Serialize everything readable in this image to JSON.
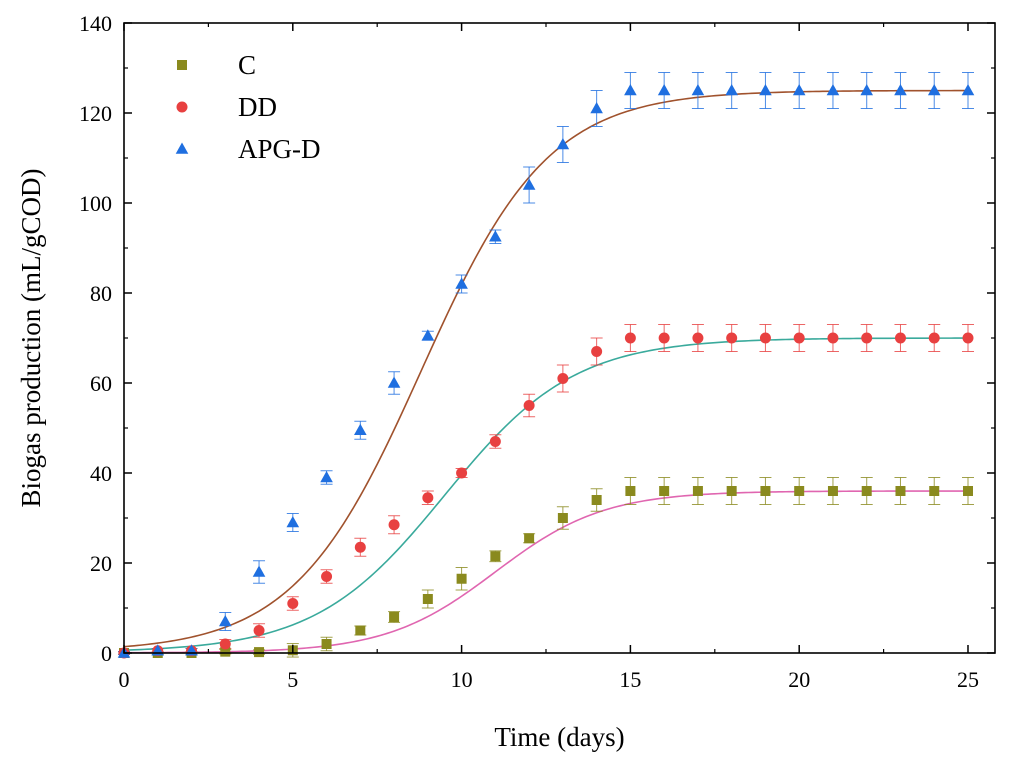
{
  "chart_data": {
    "type": "scatter",
    "title": "",
    "xlabel": "Time (days)",
    "ylabel": "Biogas production (mL/gCOD)",
    "xlim": [
      0,
      25.8
    ],
    "ylim": [
      0,
      140
    ],
    "xticks": [
      0,
      5,
      10,
      15,
      20,
      25
    ],
    "yticks": [
      0,
      20,
      40,
      60,
      80,
      100,
      120,
      140
    ],
    "legend_position": "top-left",
    "grid": false,
    "series": [
      {
        "name": "C",
        "marker": "square",
        "color": "#8a8a1e",
        "fit_color": "#e066b0",
        "x": [
          0,
          1,
          2,
          3,
          4,
          5,
          6,
          7,
          8,
          9,
          10,
          11,
          12,
          13,
          14,
          15,
          16,
          17,
          18,
          19,
          20,
          21,
          22,
          23,
          24,
          25
        ],
        "values": [
          0,
          0,
          0,
          0.3,
          0.2,
          0.6,
          2,
          5,
          8,
          12,
          16.5,
          21.5,
          25.5,
          30,
          34,
          36,
          36,
          36,
          36,
          36,
          36,
          36,
          36,
          36,
          36,
          36
        ],
        "errors": [
          0.3,
          0.3,
          0.3,
          0.5,
          0.5,
          1.5,
          1.5,
          1,
          1.2,
          2,
          2.5,
          1.2,
          1,
          2.5,
          2.5,
          3,
          3,
          3,
          3,
          3,
          3,
          3,
          3,
          3,
          3,
          3
        ],
        "fit": {
          "A": 36,
          "k": 0.62,
          "t0": 11,
          "offset": 0.03
        }
      },
      {
        "name": "DD",
        "marker": "circle",
        "color": "#e84040",
        "fit_color": "#3aaa9c",
        "x": [
          0,
          1,
          2,
          3,
          4,
          5,
          6,
          7,
          8,
          9,
          10,
          11,
          12,
          13,
          14,
          15,
          16,
          17,
          18,
          19,
          20,
          21,
          22,
          23,
          24,
          25
        ],
        "values": [
          0,
          0.5,
          0.5,
          2,
          5,
          11,
          17,
          23.5,
          28.5,
          34.5,
          40,
          47,
          55,
          61,
          67,
          70,
          70,
          70,
          70,
          70,
          70,
          70,
          70,
          70,
          70,
          70
        ],
        "errors": [
          0.3,
          0.5,
          0.5,
          1,
          1.5,
          1.5,
          1.5,
          2,
          2,
          1.5,
          1,
          1.5,
          2.5,
          3,
          3,
          3,
          3,
          3,
          3,
          3,
          3,
          3,
          3,
          3,
          3,
          3
        ],
        "fit": {
          "A": 70,
          "k": 0.52,
          "t0": 9.5,
          "offset": 0.13
        }
      },
      {
        "name": "APG-D",
        "marker": "triangle",
        "color": "#1f6fe0",
        "fit_color": "#a0522d",
        "x": [
          0,
          1,
          2,
          3,
          4,
          5,
          6,
          7,
          8,
          9,
          10,
          11,
          12,
          13,
          14,
          15,
          16,
          17,
          18,
          19,
          20,
          21,
          22,
          23,
          24,
          25
        ],
        "values": [
          0,
          0.5,
          0.5,
          7,
          18,
          29,
          39,
          49.5,
          60,
          70.5,
          82,
          92.5,
          104,
          113,
          121,
          125,
          125,
          125,
          125,
          125,
          125,
          125,
          125,
          125,
          125,
          125
        ],
        "errors": [
          0.3,
          0.5,
          0.5,
          2,
          2.5,
          2,
          1.5,
          2,
          2.5,
          1,
          2,
          1.5,
          4,
          4,
          4,
          4,
          4,
          4,
          4,
          4,
          4,
          4,
          4,
          4,
          4,
          4
        ],
        "fit": {
          "A": 125,
          "k": 0.53,
          "t0": 8.8,
          "offset": 0.24
        }
      }
    ]
  }
}
